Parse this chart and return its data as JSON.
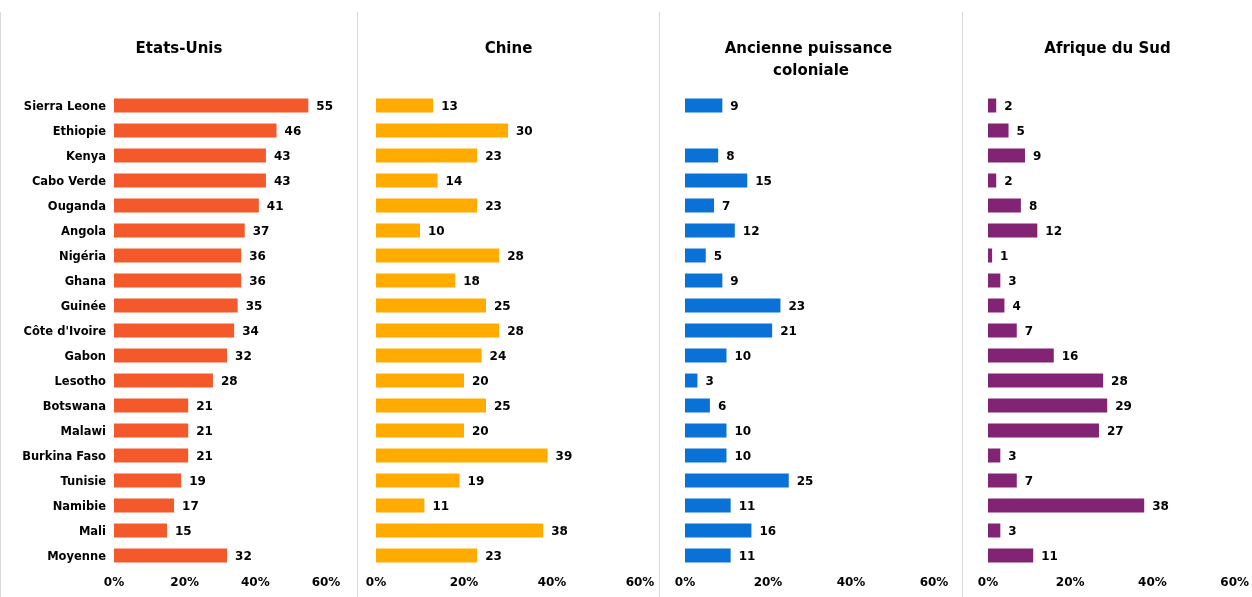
{
  "chart_data": [
    {
      "type": "bar",
      "orientation": "horizontal",
      "title": "Etats-Unis",
      "categories": [
        "Sierra Leone",
        "Ethiopie",
        "Kenya",
        "Cabo Verde",
        "Ouganda",
        "Angola",
        "Nigéria",
        "Ghana",
        "Guinée",
        "Côte d'Ivoire",
        "Gabon",
        "Lesotho",
        "Botswana",
        "Malawi",
        "Burkina Faso",
        "Tunisie",
        "Namibie",
        "Mali",
        "Moyenne"
      ],
      "values": [
        55,
        46,
        43,
        43,
        41,
        37,
        36,
        36,
        35,
        34,
        32,
        28,
        21,
        21,
        21,
        19,
        17,
        15,
        32
      ],
      "color": "#f4592b",
      "xlim": [
        0,
        60
      ],
      "xticks": [
        {
          "value": 0,
          "label": "0%"
        },
        {
          "value": 20,
          "label": "20%"
        },
        {
          "value": 40,
          "label": "40%"
        },
        {
          "value": 60,
          "label": "60%"
        }
      ],
      "data_labels": true,
      "grid": false
    },
    {
      "type": "bar",
      "orientation": "horizontal",
      "title": "Chine",
      "categories": [
        null,
        null,
        null,
        null,
        null,
        null,
        null,
        null,
        null,
        null,
        null,
        null,
        null,
        null,
        null,
        null,
        null,
        null,
        null
      ],
      "values": [
        13,
        30,
        23,
        14,
        23,
        10,
        28,
        18,
        25,
        28,
        24,
        20,
        25,
        20,
        39,
        19,
        11,
        38,
        23
      ],
      "color": "#ffab00",
      "xlim": [
        0,
        60
      ],
      "xticks": [
        {
          "value": 0,
          "label": "0%"
        },
        {
          "value": 20,
          "label": "20%"
        },
        {
          "value": 40,
          "label": "40%"
        },
        {
          "value": 60,
          "label": "60%"
        }
      ],
      "data_labels": true,
      "grid": false,
      "tick_labels": "x"
    },
    {
      "type": "bar",
      "orientation": "horizontal",
      "title": "Ancienne puissance coloniale",
      "categories": [
        null,
        null,
        null,
        null,
        null,
        null,
        null,
        null,
        null,
        null,
        null,
        null,
        null,
        null,
        null,
        null,
        null,
        null,
        null
      ],
      "values": [
        9,
        null,
        8,
        15,
        7,
        12,
        5,
        9,
        23,
        21,
        10,
        3,
        6,
        10,
        10,
        25,
        11,
        16,
        11
      ],
      "color": "#0a72d6",
      "xlim": [
        0,
        60
      ],
      "xticks": [
        {
          "value": 0,
          "label": "0%"
        },
        {
          "value": 20,
          "label": "20%"
        },
        {
          "value": 40,
          "label": "40%"
        },
        {
          "value": 60,
          "label": "60%"
        }
      ],
      "data_labels": true,
      "grid": false,
      "tick_labels": "x"
    },
    {
      "type": "bar",
      "orientation": "horizontal",
      "title": "Afrique du Sud",
      "categories": [
        null,
        null,
        null,
        null,
        null,
        null,
        null,
        null,
        null,
        null,
        null,
        null,
        null,
        null,
        null,
        null,
        null,
        null,
        null
      ],
      "values": [
        2,
        5,
        9,
        2,
        8,
        12,
        1,
        3,
        4,
        7,
        16,
        28,
        29,
        27,
        3,
        7,
        38,
        3,
        11
      ],
      "color": "#822473",
      "xlim": [
        0,
        60
      ],
      "xticks": [
        {
          "value": 0,
          "label": "0%"
        },
        {
          "value": 20,
          "label": "20%"
        },
        {
          "value": 40,
          "label": "40%"
        },
        {
          "value": 60,
          "label": "60%"
        }
      ],
      "data_labels": true,
      "grid": false,
      "tick_labels": "x"
    }
  ]
}
